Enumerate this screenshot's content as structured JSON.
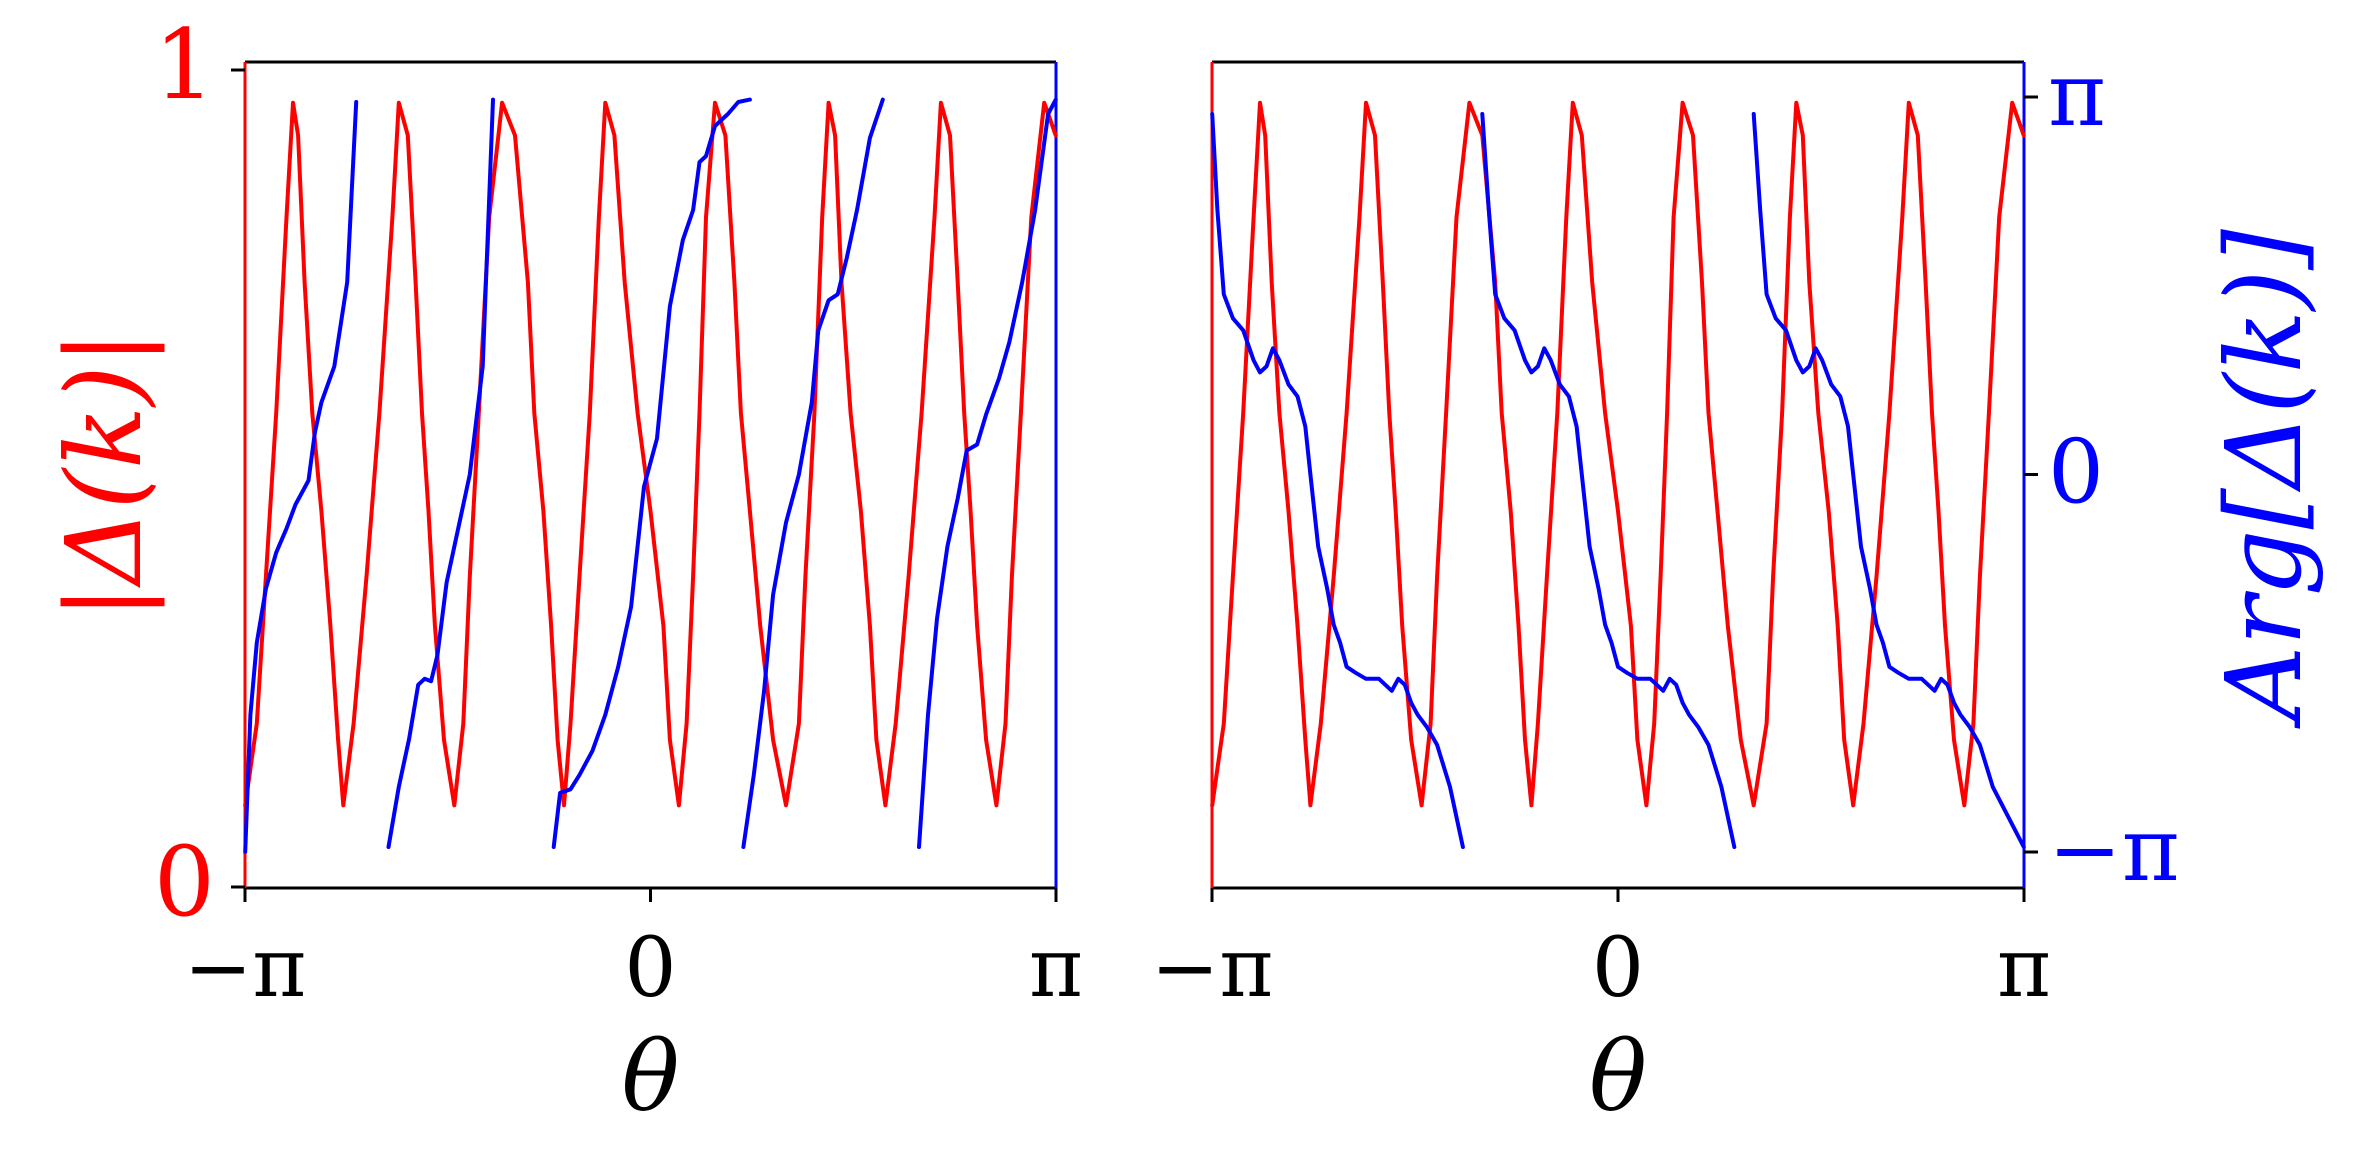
{
  "colors": {
    "magnitude": "#ff0000",
    "phase": "#0000ff",
    "axes": "#000000"
  },
  "chart_data": [
    {
      "type": "line",
      "panel": "left",
      "xlabel": "θ",
      "ylabel_left": "|Δ(k)|",
      "xlim": [
        -3.14159,
        3.14159
      ],
      "ylim_left": [
        0,
        1
      ],
      "ylim_right": [
        -3.14159,
        3.14159
      ],
      "xticks": [
        {
          "value": -3.14159,
          "label": "−π"
        },
        {
          "value": 0,
          "label": "0"
        },
        {
          "value": 3.14159,
          "label": "π"
        }
      ],
      "yticks_left": [
        {
          "value": 0,
          "label": "0"
        },
        {
          "value": 1,
          "label": "1"
        }
      ],
      "grid": false,
      "series": [
        {
          "axis": "left",
          "color": "#ff0000",
          "x": [
            -3.14,
            -3.05,
            -2.98,
            -2.9,
            -2.82,
            -2.77,
            -2.73,
            -2.68,
            -2.62,
            -2.55,
            -2.48,
            -2.42,
            -2.38,
            -2.3,
            -2.2,
            -2.1,
            -2.0,
            -1.95,
            -1.88,
            -1.82,
            -1.77,
            -1.72,
            -1.67,
            -1.6,
            -1.52,
            -1.45,
            -1.4,
            -1.33,
            -1.25,
            -1.15,
            -1.05,
            -0.95,
            -0.9,
            -0.83,
            -0.77,
            -0.72,
            -0.67,
            -0.62,
            -0.55,
            -0.47,
            -0.4,
            -0.35,
            -0.28,
            -0.2,
            -0.1,
            0.0,
            0.1,
            0.15,
            0.22,
            0.28,
            0.33,
            0.38,
            0.43,
            0.5,
            0.58,
            0.65,
            0.7,
            0.77,
            0.85,
            0.95,
            1.05,
            1.15,
            1.2,
            1.27,
            1.33,
            1.38,
            1.43,
            1.48,
            1.55,
            1.63,
            1.7,
            1.75,
            1.82,
            1.9,
            2.0,
            2.1,
            2.2,
            2.25,
            2.32,
            2.38,
            2.43,
            2.48,
            2.53,
            2.6,
            2.68,
            2.75,
            2.8,
            2.87,
            2.95,
            3.05,
            3.14
          ],
          "y": [
            0.1,
            0.2,
            0.38,
            0.58,
            0.82,
            0.96,
            0.92,
            0.74,
            0.58,
            0.46,
            0.32,
            0.18,
            0.1,
            0.2,
            0.38,
            0.58,
            0.82,
            0.96,
            0.92,
            0.74,
            0.58,
            0.46,
            0.32,
            0.18,
            0.1,
            0.2,
            0.38,
            0.58,
            0.82,
            0.96,
            0.92,
            0.74,
            0.58,
            0.46,
            0.32,
            0.18,
            0.1,
            0.2,
            0.38,
            0.58,
            0.82,
            0.96,
            0.92,
            0.74,
            0.58,
            0.46,
            0.32,
            0.18,
            0.1,
            0.2,
            0.38,
            0.58,
            0.82,
            0.96,
            0.92,
            0.74,
            0.58,
            0.46,
            0.32,
            0.18,
            0.1,
            0.2,
            0.38,
            0.58,
            0.82,
            0.96,
            0.92,
            0.74,
            0.58,
            0.46,
            0.32,
            0.18,
            0.1,
            0.2,
            0.38,
            0.58,
            0.82,
            0.96,
            0.92,
            0.74,
            0.58,
            0.46,
            0.32,
            0.18,
            0.1,
            0.2,
            0.38,
            0.58,
            0.82,
            0.96,
            0.92
          ]
        },
        {
          "axis": "right",
          "color": "#0000ff",
          "segments": [
            {
              "x": [
                -3.14,
                -3.1,
                -3.05,
                -2.98,
                -2.9,
                -2.82,
                -2.75,
                -2.7,
                -2.65,
                -2.6,
                -2.55,
                -2.45,
                -2.35,
                -2.28
              ],
              "y": [
                -3.14,
                -2.0,
                -1.4,
                -0.95,
                -0.65,
                -0.45,
                -0.25,
                -0.15,
                -0.05,
                0.35,
                0.6,
                0.9,
                1.6,
                3.1
              ]
            },
            {
              "x": [
                -2.03,
                -1.95,
                -1.87,
                -1.8,
                -1.75,
                -1.7,
                -1.65,
                -1.58,
                -1.5,
                -1.4,
                -1.3,
                -1.22
              ],
              "y": [
                -3.1,
                -2.6,
                -2.2,
                -1.75,
                -1.7,
                -1.72,
                -1.5,
                -0.9,
                -0.5,
                0.0,
                0.9,
                3.12
              ]
            },
            {
              "x": [
                -0.75,
                -0.7,
                -0.62,
                -0.55,
                -0.45,
                -0.35,
                -0.25,
                -0.15,
                -0.05,
                0.05,
                0.15,
                0.25,
                0.33,
                0.38,
                0.43,
                0.5,
                0.6,
                0.68,
                0.77
              ],
              "y": [
                -3.1,
                -2.65,
                -2.62,
                -2.5,
                -2.3,
                -2.0,
                -1.6,
                -1.1,
                -0.1,
                0.3,
                1.4,
                1.95,
                2.2,
                2.6,
                2.65,
                2.9,
                3.0,
                3.1,
                3.12
              ]
            },
            {
              "x": [
                0.72,
                0.8,
                0.88,
                0.95,
                1.05,
                1.15,
                1.25,
                1.3,
                1.38,
                1.45,
                1.52,
                1.6,
                1.7,
                1.8
              ],
              "y": [
                -3.1,
                -2.5,
                -1.8,
                -1.0,
                -0.4,
                0.0,
                0.6,
                1.2,
                1.45,
                1.5,
                1.8,
                2.2,
                2.8,
                3.12
              ]
            },
            {
              "x": [
                2.08,
                2.15,
                2.22,
                2.3,
                2.38,
                2.45,
                2.53,
                2.6,
                2.7,
                2.78,
                2.88,
                2.98,
                3.08,
                3.14
              ],
              "y": [
                -3.1,
                -2.0,
                -1.2,
                -0.6,
                -0.2,
                0.2,
                0.25,
                0.5,
                0.8,
                1.1,
                1.6,
                2.2,
                3.0,
                3.12
              ]
            }
          ]
        }
      ]
    },
    {
      "type": "line",
      "panel": "right",
      "xlabel": "θ",
      "ylabel_right": "Arg[Δ(k)]",
      "xlim": [
        -3.14159,
        3.14159
      ],
      "ylim_left": [
        0,
        1
      ],
      "ylim_right": [
        -3.14159,
        3.14159
      ],
      "xticks": [
        {
          "value": -3.14159,
          "label": "−π"
        },
        {
          "value": 0,
          "label": "0"
        },
        {
          "value": 3.14159,
          "label": "π"
        }
      ],
      "yticks_right": [
        {
          "value": -3.14159,
          "label": "−π"
        },
        {
          "value": 0,
          "label": "0"
        },
        {
          "value": 3.14159,
          "label": "π"
        }
      ],
      "grid": false,
      "series": [
        {
          "axis": "left",
          "color": "#ff0000",
          "x": [
            -3.14,
            -3.05,
            -2.98,
            -2.9,
            -2.82,
            -2.77,
            -2.73,
            -2.68,
            -2.62,
            -2.55,
            -2.48,
            -2.42,
            -2.38,
            -2.3,
            -2.2,
            -2.1,
            -2.0,
            -1.95,
            -1.88,
            -1.82,
            -1.77,
            -1.72,
            -1.67,
            -1.6,
            -1.52,
            -1.45,
            -1.4,
            -1.33,
            -1.25,
            -1.15,
            -1.05,
            -0.95,
            -0.9,
            -0.83,
            -0.77,
            -0.72,
            -0.67,
            -0.62,
            -0.55,
            -0.47,
            -0.4,
            -0.35,
            -0.28,
            -0.2,
            -0.1,
            0.0,
            0.1,
            0.15,
            0.22,
            0.28,
            0.33,
            0.38,
            0.43,
            0.5,
            0.58,
            0.65,
            0.7,
            0.77,
            0.85,
            0.95,
            1.05,
            1.15,
            1.2,
            1.27,
            1.33,
            1.38,
            1.43,
            1.48,
            1.55,
            1.63,
            1.7,
            1.75,
            1.82,
            1.9,
            2.0,
            2.1,
            2.2,
            2.25,
            2.32,
            2.38,
            2.43,
            2.48,
            2.53,
            2.6,
            2.68,
            2.75,
            2.8,
            2.87,
            2.95,
            3.05,
            3.14
          ],
          "y": [
            0.1,
            0.2,
            0.38,
            0.58,
            0.82,
            0.96,
            0.92,
            0.74,
            0.58,
            0.46,
            0.32,
            0.18,
            0.1,
            0.2,
            0.38,
            0.58,
            0.82,
            0.96,
            0.92,
            0.74,
            0.58,
            0.46,
            0.32,
            0.18,
            0.1,
            0.2,
            0.38,
            0.58,
            0.82,
            0.96,
            0.92,
            0.74,
            0.58,
            0.46,
            0.32,
            0.18,
            0.1,
            0.2,
            0.38,
            0.58,
            0.82,
            0.96,
            0.92,
            0.74,
            0.58,
            0.46,
            0.32,
            0.18,
            0.1,
            0.2,
            0.38,
            0.58,
            0.82,
            0.96,
            0.92,
            0.74,
            0.58,
            0.46,
            0.32,
            0.18,
            0.1,
            0.2,
            0.38,
            0.58,
            0.82,
            0.96,
            0.92,
            0.74,
            0.58,
            0.46,
            0.32,
            0.18,
            0.1,
            0.2,
            0.38,
            0.58,
            0.82,
            0.96,
            0.92,
            0.74,
            0.58,
            0.46,
            0.32,
            0.18,
            0.1,
            0.2,
            0.38,
            0.58,
            0.82,
            0.96,
            0.92
          ]
        },
        {
          "axis": "right",
          "color": "#0000ff",
          "segments": [
            {
              "x": [
                -3.14,
                -3.1,
                -3.05,
                -2.98,
                -2.9,
                -2.82,
                -2.77,
                -2.72,
                -2.67,
                -2.62,
                -2.55,
                -2.48,
                -2.42,
                -2.38,
                -2.32,
                -2.25,
                -2.2,
                -2.15,
                -2.1,
                -2.03,
                -1.95,
                -1.85,
                -1.75,
                -1.7,
                -1.65,
                -1.6,
                -1.55,
                -1.48,
                -1.4,
                -1.3,
                -1.2
              ],
              "y": [
                3.0,
                2.2,
                1.5,
                1.3,
                1.2,
                0.95,
                0.85,
                0.9,
                1.05,
                0.95,
                0.75,
                0.65,
                0.4,
                0.0,
                -0.6,
                -0.95,
                -1.25,
                -1.4,
                -1.6,
                -1.65,
                -1.7,
                -1.7,
                -1.8,
                -1.7,
                -1.75,
                -1.9,
                -2.0,
                -2.1,
                -2.25,
                -2.6,
                -3.1
              ]
            },
            {
              "x": [
                -1.05,
                -1.0,
                -0.95,
                -0.88,
                -0.8,
                -0.72,
                -0.67,
                -0.62,
                -0.57,
                -0.52,
                -0.45,
                -0.38,
                -0.32,
                -0.28,
                -0.22,
                -0.15,
                -0.1,
                -0.05,
                0.0,
                0.07,
                0.15,
                0.25,
                0.35,
                0.4,
                0.45,
                0.5,
                0.55,
                0.62,
                0.7,
                0.8,
                0.9
              ],
              "y": [
                3.0,
                2.2,
                1.5,
                1.3,
                1.2,
                0.95,
                0.85,
                0.9,
                1.05,
                0.95,
                0.75,
                0.65,
                0.4,
                0.0,
                -0.6,
                -0.95,
                -1.25,
                -1.4,
                -1.6,
                -1.65,
                -1.7,
                -1.7,
                -1.8,
                -1.7,
                -1.75,
                -1.9,
                -2.0,
                -2.1,
                -2.25,
                -2.6,
                -3.1
              ]
            },
            {
              "x": [
                1.05,
                1.1,
                1.15,
                1.22,
                1.3,
                1.38,
                1.43,
                1.48,
                1.53,
                1.58,
                1.65,
                1.72,
                1.78,
                1.82,
                1.88,
                1.95,
                2.0,
                2.05,
                2.1,
                2.17,
                2.25,
                2.35,
                2.45,
                2.5,
                2.55,
                2.6,
                2.65,
                2.72,
                2.8,
                2.9,
                3.14
              ],
              "y": [
                3.0,
                2.2,
                1.5,
                1.3,
                1.2,
                0.95,
                0.85,
                0.9,
                1.05,
                0.95,
                0.75,
                0.65,
                0.4,
                0.0,
                -0.6,
                -0.95,
                -1.25,
                -1.4,
                -1.6,
                -1.65,
                -1.7,
                -1.7,
                -1.8,
                -1.7,
                -1.75,
                -1.9,
                -2.0,
                -2.1,
                -2.25,
                -2.6,
                -3.1
              ]
            }
          ]
        }
      ]
    }
  ]
}
